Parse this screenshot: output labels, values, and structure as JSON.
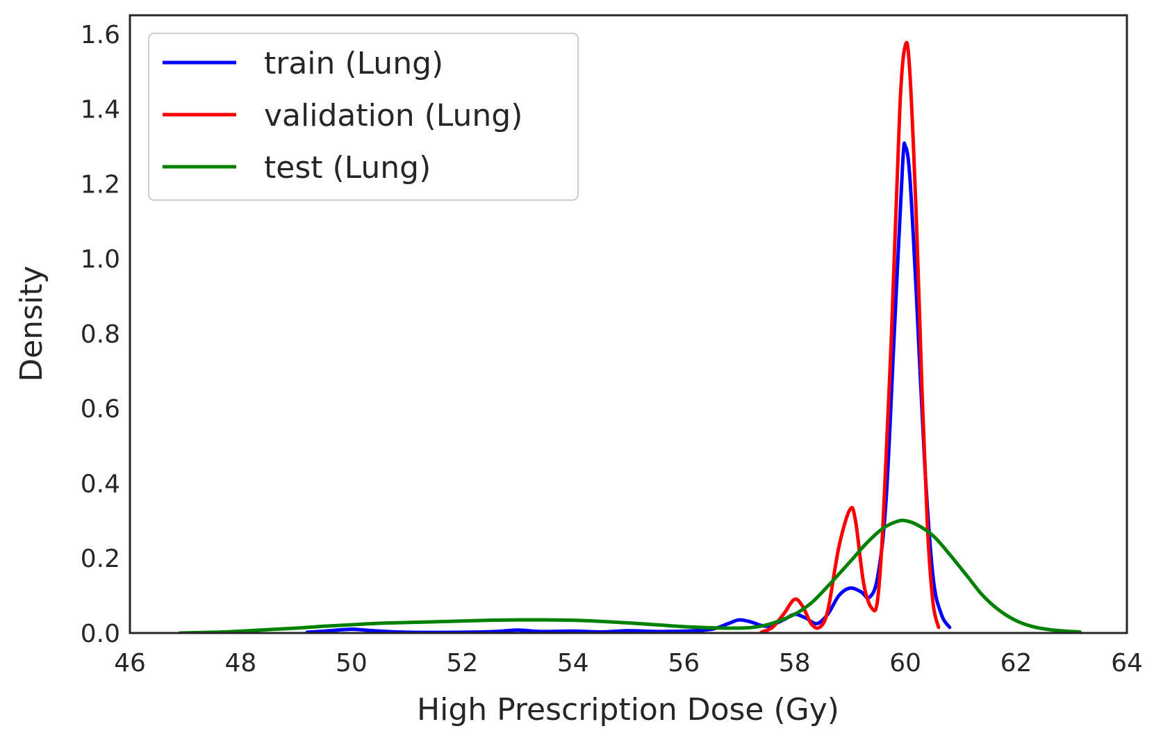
{
  "chart_data": {
    "type": "line",
    "title": "",
    "xlabel": "High Prescription Dose (Gy)",
    "ylabel": "Density",
    "xlim": [
      46,
      64
    ],
    "ylim": [
      0,
      1.65
    ],
    "xticks": [
      46,
      48,
      50,
      52,
      54,
      56,
      58,
      60,
      62,
      64
    ],
    "yticks": [
      0.0,
      0.2,
      0.4,
      0.6,
      0.8,
      1.0,
      1.2,
      1.4,
      1.6
    ],
    "xtick_labels": [
      "46",
      "48",
      "50",
      "52",
      "54",
      "56",
      "58",
      "60",
      "62",
      "64"
    ],
    "ytick_labels": [
      "0.0",
      "0.2",
      "0.4",
      "0.6",
      "0.8",
      "1.0",
      "1.2",
      "1.4",
      "1.6"
    ],
    "grid": false,
    "legend_position": "top-left",
    "series": [
      {
        "name": "train (Lung)",
        "color": "#0000ff",
        "points": [
          [
            49.2,
            0.002
          ],
          [
            49.6,
            0.006
          ],
          [
            50.0,
            0.01
          ],
          [
            50.4,
            0.006
          ],
          [
            51.0,
            0.002
          ],
          [
            52.0,
            0.002
          ],
          [
            52.6,
            0.004
          ],
          [
            53.0,
            0.008
          ],
          [
            53.4,
            0.004
          ],
          [
            54.0,
            0.005
          ],
          [
            54.5,
            0.003
          ],
          [
            55.0,
            0.006
          ],
          [
            55.5,
            0.004
          ],
          [
            56.0,
            0.005
          ],
          [
            56.5,
            0.01
          ],
          [
            56.8,
            0.025
          ],
          [
            57.0,
            0.035
          ],
          [
            57.2,
            0.03
          ],
          [
            57.5,
            0.018
          ],
          [
            57.8,
            0.035
          ],
          [
            58.0,
            0.05
          ],
          [
            58.2,
            0.04
          ],
          [
            58.4,
            0.025
          ],
          [
            58.6,
            0.05
          ],
          [
            58.8,
            0.1
          ],
          [
            59.0,
            0.12
          ],
          [
            59.2,
            0.11
          ],
          [
            59.35,
            0.095
          ],
          [
            59.5,
            0.15
          ],
          [
            59.65,
            0.35
          ],
          [
            59.8,
            0.8
          ],
          [
            59.95,
            1.25
          ],
          [
            60.0,
            1.3
          ],
          [
            60.08,
            1.22
          ],
          [
            60.2,
            0.9
          ],
          [
            60.35,
            0.45
          ],
          [
            60.5,
            0.15
          ],
          [
            60.65,
            0.05
          ],
          [
            60.8,
            0.015
          ]
        ]
      },
      {
        "name": "validation (Lung)",
        "color": "#ff0000",
        "points": [
          [
            57.4,
            0.002
          ],
          [
            57.6,
            0.015
          ],
          [
            57.8,
            0.05
          ],
          [
            58.0,
            0.09
          ],
          [
            58.15,
            0.07
          ],
          [
            58.3,
            0.025
          ],
          [
            58.45,
            0.015
          ],
          [
            58.6,
            0.06
          ],
          [
            58.8,
            0.23
          ],
          [
            59.0,
            0.33
          ],
          [
            59.1,
            0.3
          ],
          [
            59.25,
            0.13
          ],
          [
            59.4,
            0.065
          ],
          [
            59.5,
            0.09
          ],
          [
            59.6,
            0.3
          ],
          [
            59.75,
            0.8
          ],
          [
            59.9,
            1.4
          ],
          [
            60.0,
            1.57
          ],
          [
            60.08,
            1.5
          ],
          [
            60.2,
            1.1
          ],
          [
            60.3,
            0.65
          ],
          [
            60.4,
            0.28
          ],
          [
            60.5,
            0.08
          ],
          [
            60.6,
            0.015
          ]
        ]
      },
      {
        "name": "test (Lung)",
        "color": "#008000",
        "points": [
          [
            46.9,
            0.0
          ],
          [
            47.5,
            0.002
          ],
          [
            48.0,
            0.005
          ],
          [
            48.5,
            0.009
          ],
          [
            49.0,
            0.013
          ],
          [
            49.5,
            0.018
          ],
          [
            50.0,
            0.022
          ],
          [
            50.5,
            0.026
          ],
          [
            51.0,
            0.028
          ],
          [
            51.5,
            0.03
          ],
          [
            52.0,
            0.032
          ],
          [
            52.5,
            0.034
          ],
          [
            53.0,
            0.035
          ],
          [
            53.5,
            0.035
          ],
          [
            54.0,
            0.034
          ],
          [
            54.5,
            0.031
          ],
          [
            55.0,
            0.027
          ],
          [
            55.5,
            0.022
          ],
          [
            56.0,
            0.017
          ],
          [
            56.5,
            0.014
          ],
          [
            57.0,
            0.013
          ],
          [
            57.3,
            0.016
          ],
          [
            57.6,
            0.026
          ],
          [
            58.0,
            0.05
          ],
          [
            58.3,
            0.08
          ],
          [
            58.6,
            0.125
          ],
          [
            59.0,
            0.19
          ],
          [
            59.3,
            0.24
          ],
          [
            59.6,
            0.28
          ],
          [
            59.85,
            0.298
          ],
          [
            60.0,
            0.3
          ],
          [
            60.2,
            0.29
          ],
          [
            60.5,
            0.26
          ],
          [
            60.8,
            0.21
          ],
          [
            61.1,
            0.155
          ],
          [
            61.4,
            0.1
          ],
          [
            61.7,
            0.06
          ],
          [
            62.0,
            0.033
          ],
          [
            62.3,
            0.017
          ],
          [
            62.6,
            0.009
          ],
          [
            62.9,
            0.005
          ],
          [
            63.15,
            0.003
          ]
        ]
      }
    ]
  }
}
